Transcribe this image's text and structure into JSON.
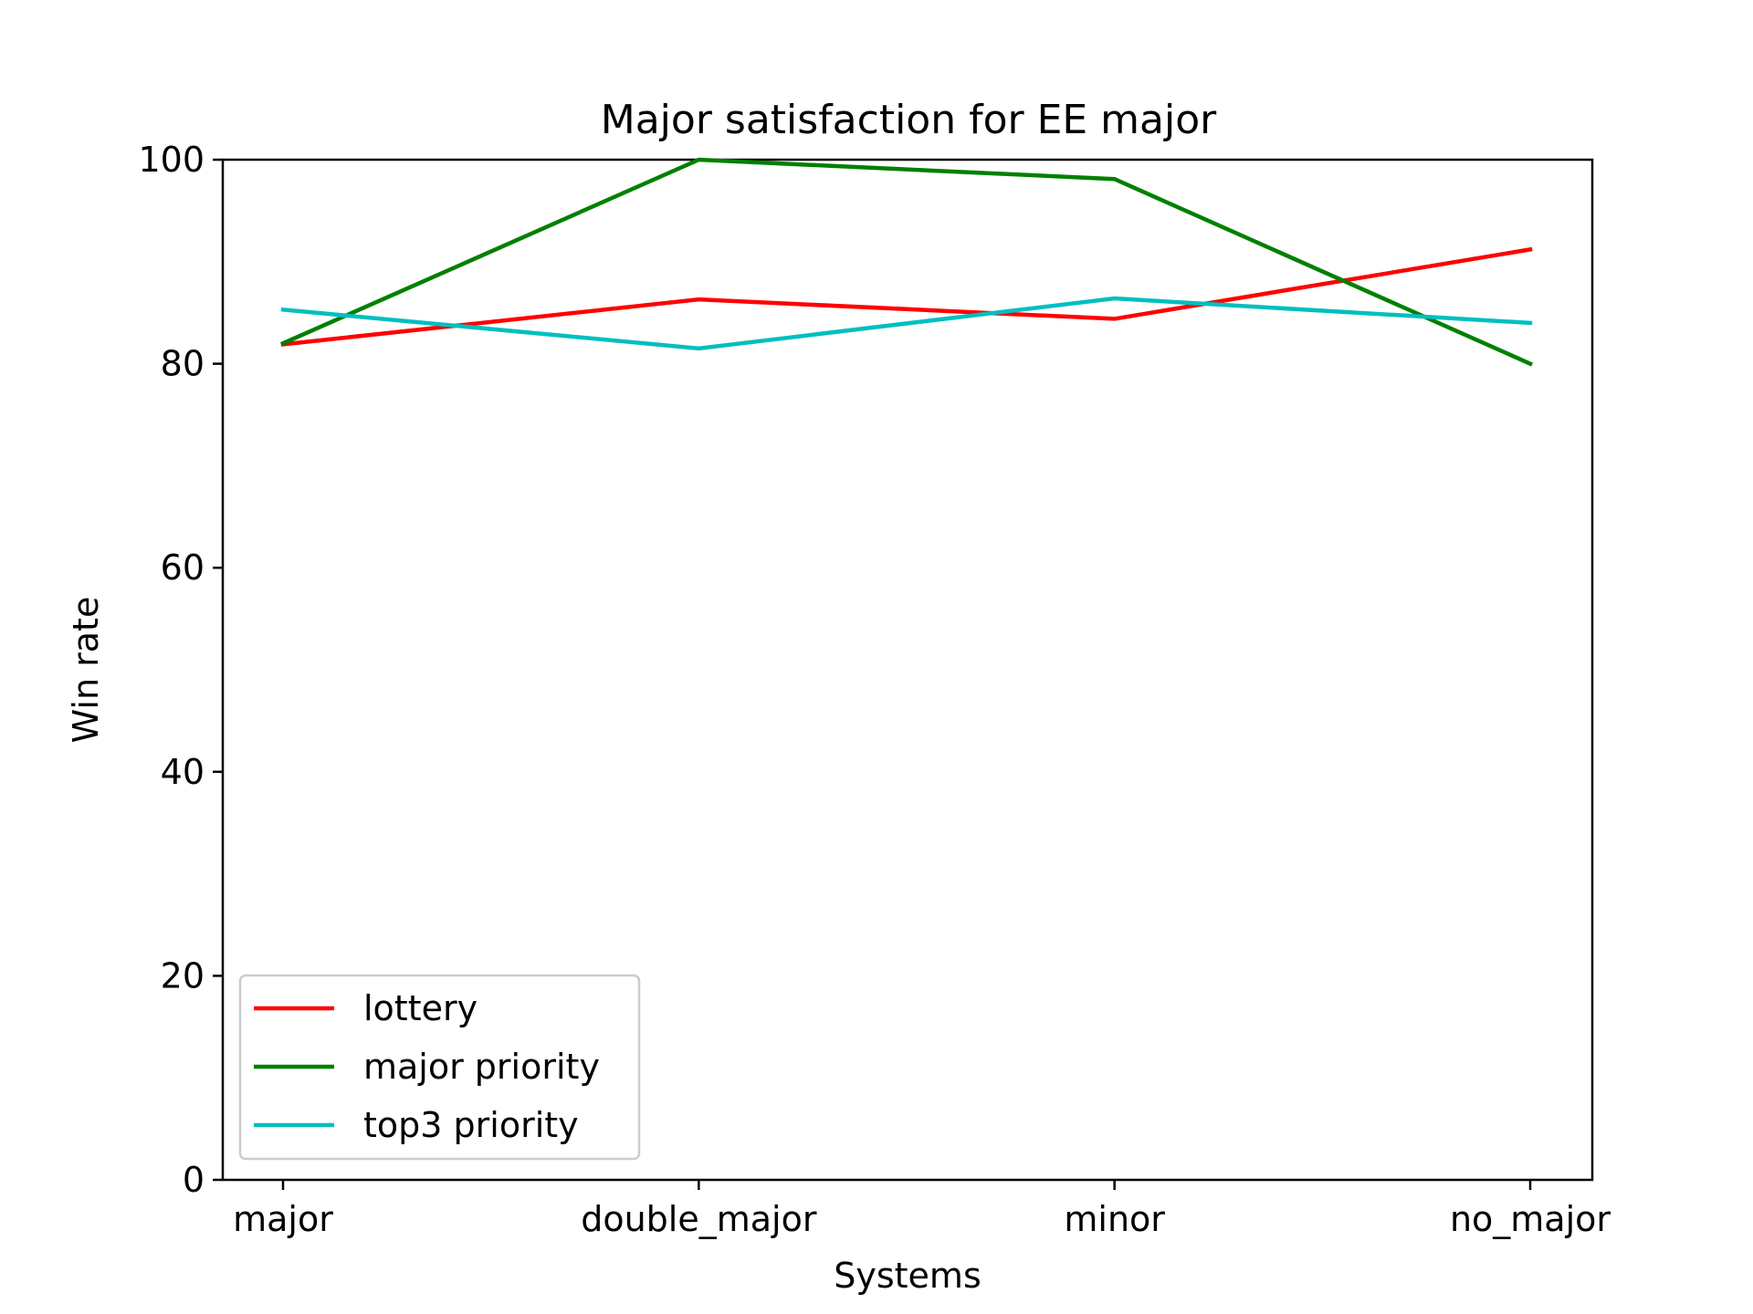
{
  "chart_data": {
    "type": "line",
    "title": "Major satisfaction for EE major",
    "xlabel": "Systems",
    "ylabel": "Win rate",
    "categories": [
      "major",
      "double_major",
      "minor",
      "no_major"
    ],
    "ylim": [
      0,
      100
    ],
    "yticks": [
      "0",
      "20",
      "40",
      "60",
      "80",
      "100"
    ],
    "grid": false,
    "legend_position": "lower-left",
    "series": [
      {
        "name": "lottery",
        "color": "#ff0000",
        "values": [
          81.9,
          86.3,
          84.4,
          91.2
        ]
      },
      {
        "name": "major priority",
        "color": "#008000",
        "values": [
          82.0,
          100.0,
          98.1,
          80.0
        ]
      },
      {
        "name": "top3 priority",
        "color": "#00bfbf",
        "values": [
          85.3,
          81.5,
          86.4,
          84.0
        ]
      }
    ]
  }
}
